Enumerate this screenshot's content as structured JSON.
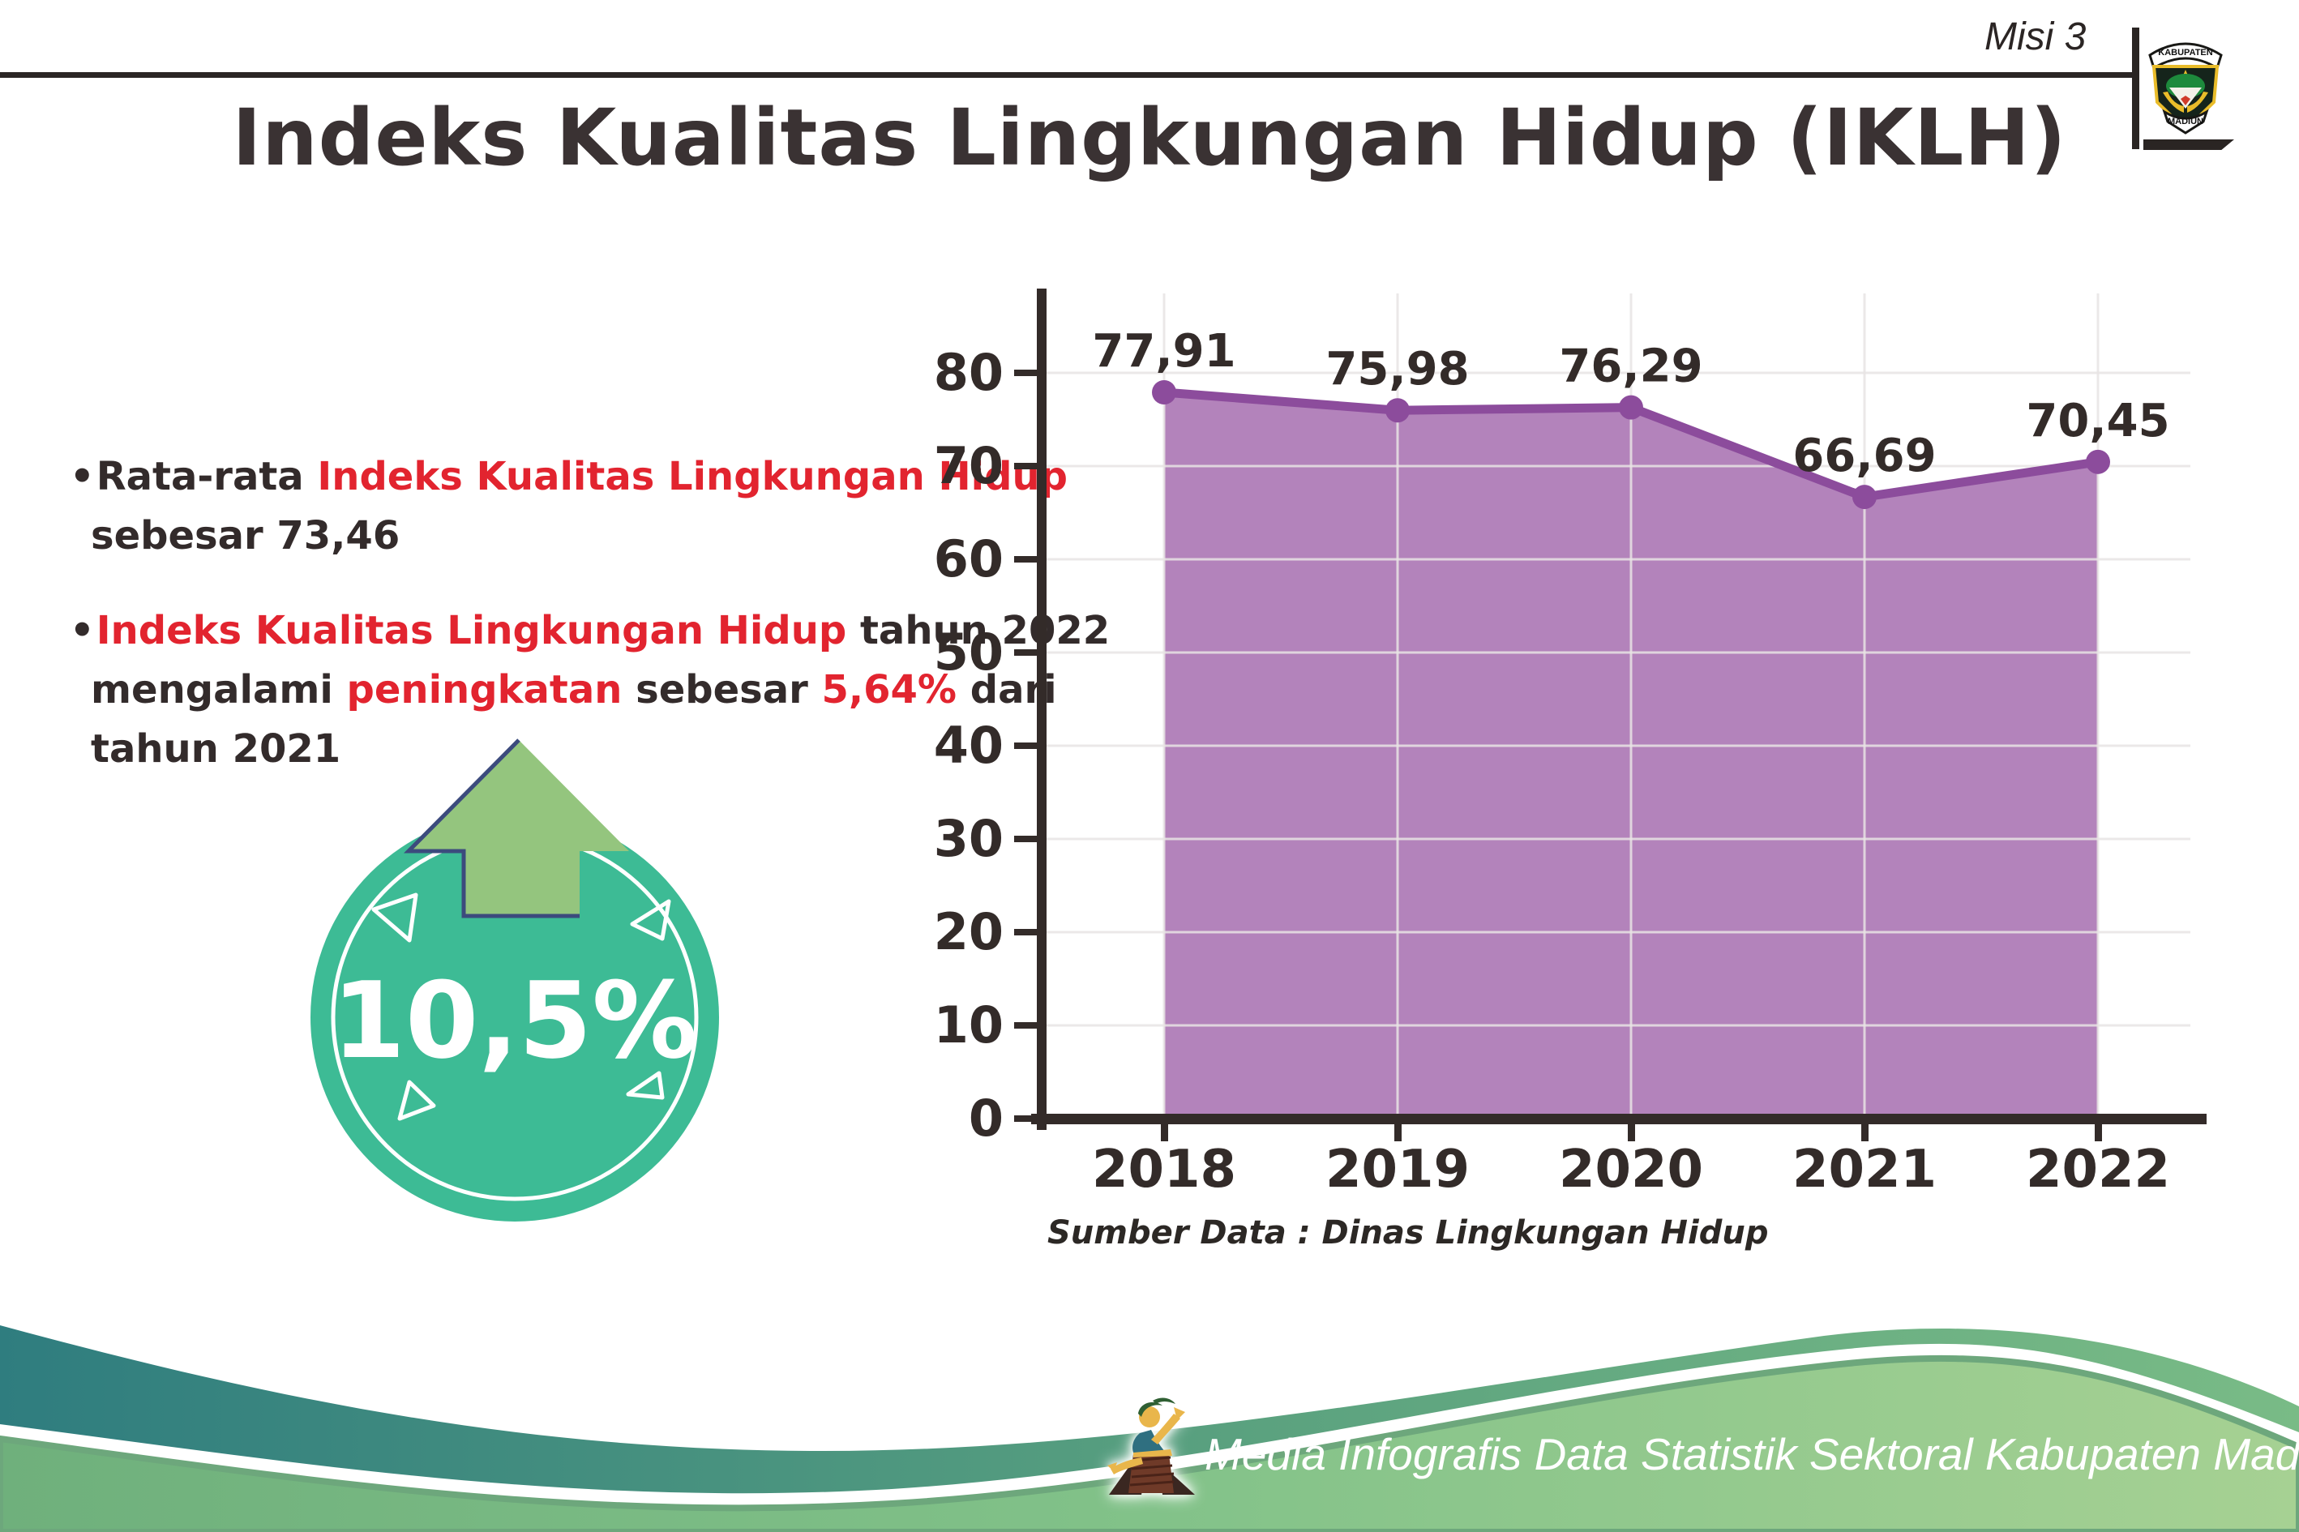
{
  "header": {
    "misi_label": "Misi 3",
    "logo_top": "KABUPATEN",
    "logo_bottom": "MADIUN"
  },
  "title": "Indeks Kualitas Lingkungan Hidup (IKLH)",
  "bullets": [
    {
      "marker": "•",
      "lines": [
        [
          {
            "t": "Rata-rata ",
            "c": "dark"
          },
          {
            "t": "Indeks Kualitas Lingkungan Hidup",
            "c": "red"
          }
        ],
        [
          {
            "t": "sebesar 73,46",
            "c": "dark"
          }
        ]
      ]
    },
    {
      "marker": "•",
      "lines": [
        [
          {
            "t": "Indeks Kualitas Lingkungan Hidup",
            "c": "red"
          },
          {
            "t": " tahun 2022",
            "c": "dark"
          }
        ],
        [
          {
            "t": "mengalami ",
            "c": "dark"
          },
          {
            "t": "peningkatan",
            "c": "red"
          },
          {
            "t": " sebesar ",
            "c": "dark"
          },
          {
            "t": "5,64%",
            "c": "red"
          },
          {
            "t": " dari",
            "c": "dark"
          }
        ],
        [
          {
            "t": "tahun 2021",
            "c": "dark"
          }
        ]
      ]
    }
  ],
  "badge": {
    "value": "10,5%",
    "icon": "up-arrow",
    "circle_color": "#3dbb95",
    "arrow_color": "#94c57e"
  },
  "chart_data": {
    "type": "area",
    "categories": [
      "2018",
      "2019",
      "2020",
      "2021",
      "2022"
    ],
    "values": [
      77.91,
      75.98,
      76.29,
      66.69,
      70.45
    ],
    "value_labels": [
      "77,91",
      "75,98",
      "76,29",
      "66,69",
      "70,45"
    ],
    "ylim": [
      0,
      80
    ],
    "yticks": [
      0,
      10,
      20,
      30,
      40,
      50,
      60,
      70,
      80
    ],
    "grid": true,
    "legend": "none",
    "source_note": "Sumber Data : Dinas Lingkungan Hidup",
    "colors": {
      "area": "#b383bb",
      "line": "#8c4c9c",
      "dot": "#8c4c9c",
      "axis": "#332b29",
      "grid": "#e7e4e4",
      "label": "#332b29"
    }
  },
  "footer": {
    "credit": "Media Infografis Data Statistik Sektoral Kabupaten Madiun |"
  }
}
